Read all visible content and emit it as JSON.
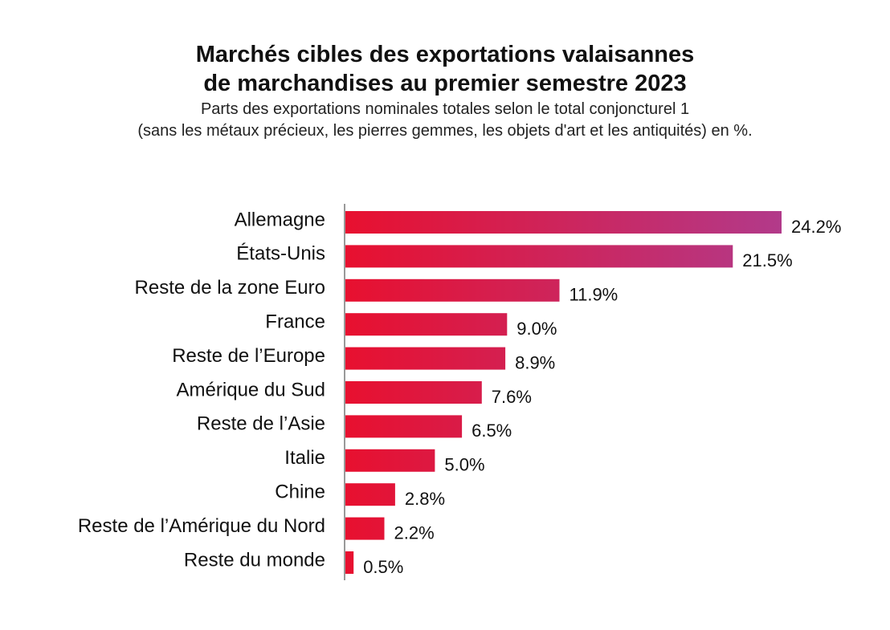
{
  "title_lines": [
    "Marchés cibles des exportations valaisannes",
    "de marchandises au premier semestre 2023"
  ],
  "subtitle_lines": [
    "Parts des exportations nominales totales selon le total conjoncturel 1",
    "(sans les métaux précieux, les pierres gemmes, les objets d'art et les antiquités) en %."
  ],
  "colors": {
    "bar_start": "#e8102f",
    "bar_end": "#b23a8a",
    "axis": "#999999"
  },
  "chart_data": {
    "type": "bar",
    "orientation": "horizontal",
    "title": "Marchés cibles des exportations valaisannes de marchandises au premier semestre 2023",
    "subtitle": "Parts des exportations nominales totales selon le total conjoncturel 1 (sans les métaux précieux, les pierres gemmes, les objets d'art et les antiquités) en %.",
    "categories": [
      "Allemagne",
      "États-Unis",
      "Reste de la zone Euro",
      "France",
      "Reste de l’Europe",
      "Amérique du Sud",
      "Reste de l’Asie",
      "Italie",
      "Chine",
      "Reste de l’Amérique du Nord",
      "Reste du monde"
    ],
    "values": [
      24.2,
      21.5,
      11.9,
      9.0,
      8.9,
      7.6,
      6.5,
      5.0,
      2.8,
      2.2,
      0.5
    ],
    "value_labels": [
      "24.2%",
      "21.5%",
      "11.9%",
      "9.0%",
      "8.9%",
      "7.6%",
      "6.5%",
      "5.0%",
      "2.8%",
      "2.2%",
      "0.5%"
    ],
    "unit": "%",
    "xlim": [
      0,
      24.2
    ],
    "grid": false,
    "legend": "none"
  }
}
